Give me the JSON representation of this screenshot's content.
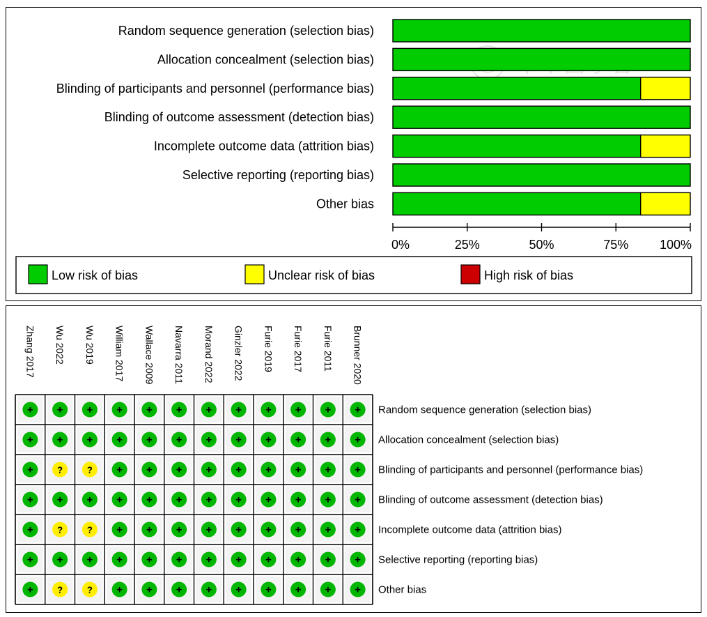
{
  "colors": {
    "low": "#00cc00",
    "unclear": "#ffff00",
    "high": "#cc0000",
    "symbol_low": "#00b600",
    "symbol_unclear": "#ffee00"
  },
  "watermark": {
    "text": "中華醫學會"
  },
  "chart_data": [
    {
      "type": "bar",
      "orientation": "horizontal",
      "stacked": true,
      "categories": [
        "Random sequence generation (selection bias)",
        "Allocation concealment (selection bias)",
        "Blinding of participants and personnel (performance bias)",
        "Blinding of outcome assessment (detection bias)",
        "Incomplete outcome data (attrition bias)",
        "Selective reporting (reporting bias)",
        "Other bias"
      ],
      "series": [
        {
          "name": "Low risk of bias",
          "values": [
            100,
            100,
            83.3,
            100,
            83.3,
            100,
            83.3
          ]
        },
        {
          "name": "Unclear risk of bias",
          "values": [
            0,
            0,
            16.7,
            0,
            16.7,
            0,
            16.7
          ]
        },
        {
          "name": "High risk of bias",
          "values": [
            0,
            0,
            0,
            0,
            0,
            0,
            0
          ]
        }
      ],
      "xlim": [
        0,
        100
      ],
      "ticks": [
        "0%",
        "25%",
        "50%",
        "75%",
        "100%"
      ],
      "legend_position": "bottom"
    },
    {
      "type": "table",
      "studies": [
        "Zhang 2017",
        "Wu 2022",
        "Wu 2019",
        "William 2017",
        "Wallace 2009",
        "Navarra 2011",
        "Morand 2022",
        "Ginzler 2022",
        "Furie 2019",
        "Furie 2017",
        "Furie 2011",
        "Brunner 2020"
      ],
      "domains": [
        "Random sequence generation (selection bias)",
        "Allocation concealment (selection bias)",
        "Blinding of participants and personnel (performance bias)",
        "Blinding of outcome assessment (detection bias)",
        "Incomplete outcome data (attrition bias)",
        "Selective reporting (reporting bias)",
        "Other bias"
      ],
      "judgements": [
        [
          "+",
          "+",
          "+",
          "+",
          "+",
          "+",
          "+",
          "+",
          "+",
          "+",
          "+",
          "+"
        ],
        [
          "+",
          "+",
          "+",
          "+",
          "+",
          "+",
          "+",
          "+",
          "+",
          "+",
          "+",
          "+"
        ],
        [
          "+",
          "?",
          "?",
          "+",
          "+",
          "+",
          "+",
          "+",
          "+",
          "+",
          "+",
          "+"
        ],
        [
          "+",
          "+",
          "+",
          "+",
          "+",
          "+",
          "+",
          "+",
          "+",
          "+",
          "+",
          "+"
        ],
        [
          "+",
          "?",
          "?",
          "+",
          "+",
          "+",
          "+",
          "+",
          "+",
          "+",
          "+",
          "+"
        ],
        [
          "+",
          "+",
          "+",
          "+",
          "+",
          "+",
          "+",
          "+",
          "+",
          "+",
          "+",
          "+"
        ],
        [
          "+",
          "?",
          "?",
          "+",
          "+",
          "+",
          "+",
          "+",
          "+",
          "+",
          "+",
          "+"
        ]
      ]
    }
  ]
}
